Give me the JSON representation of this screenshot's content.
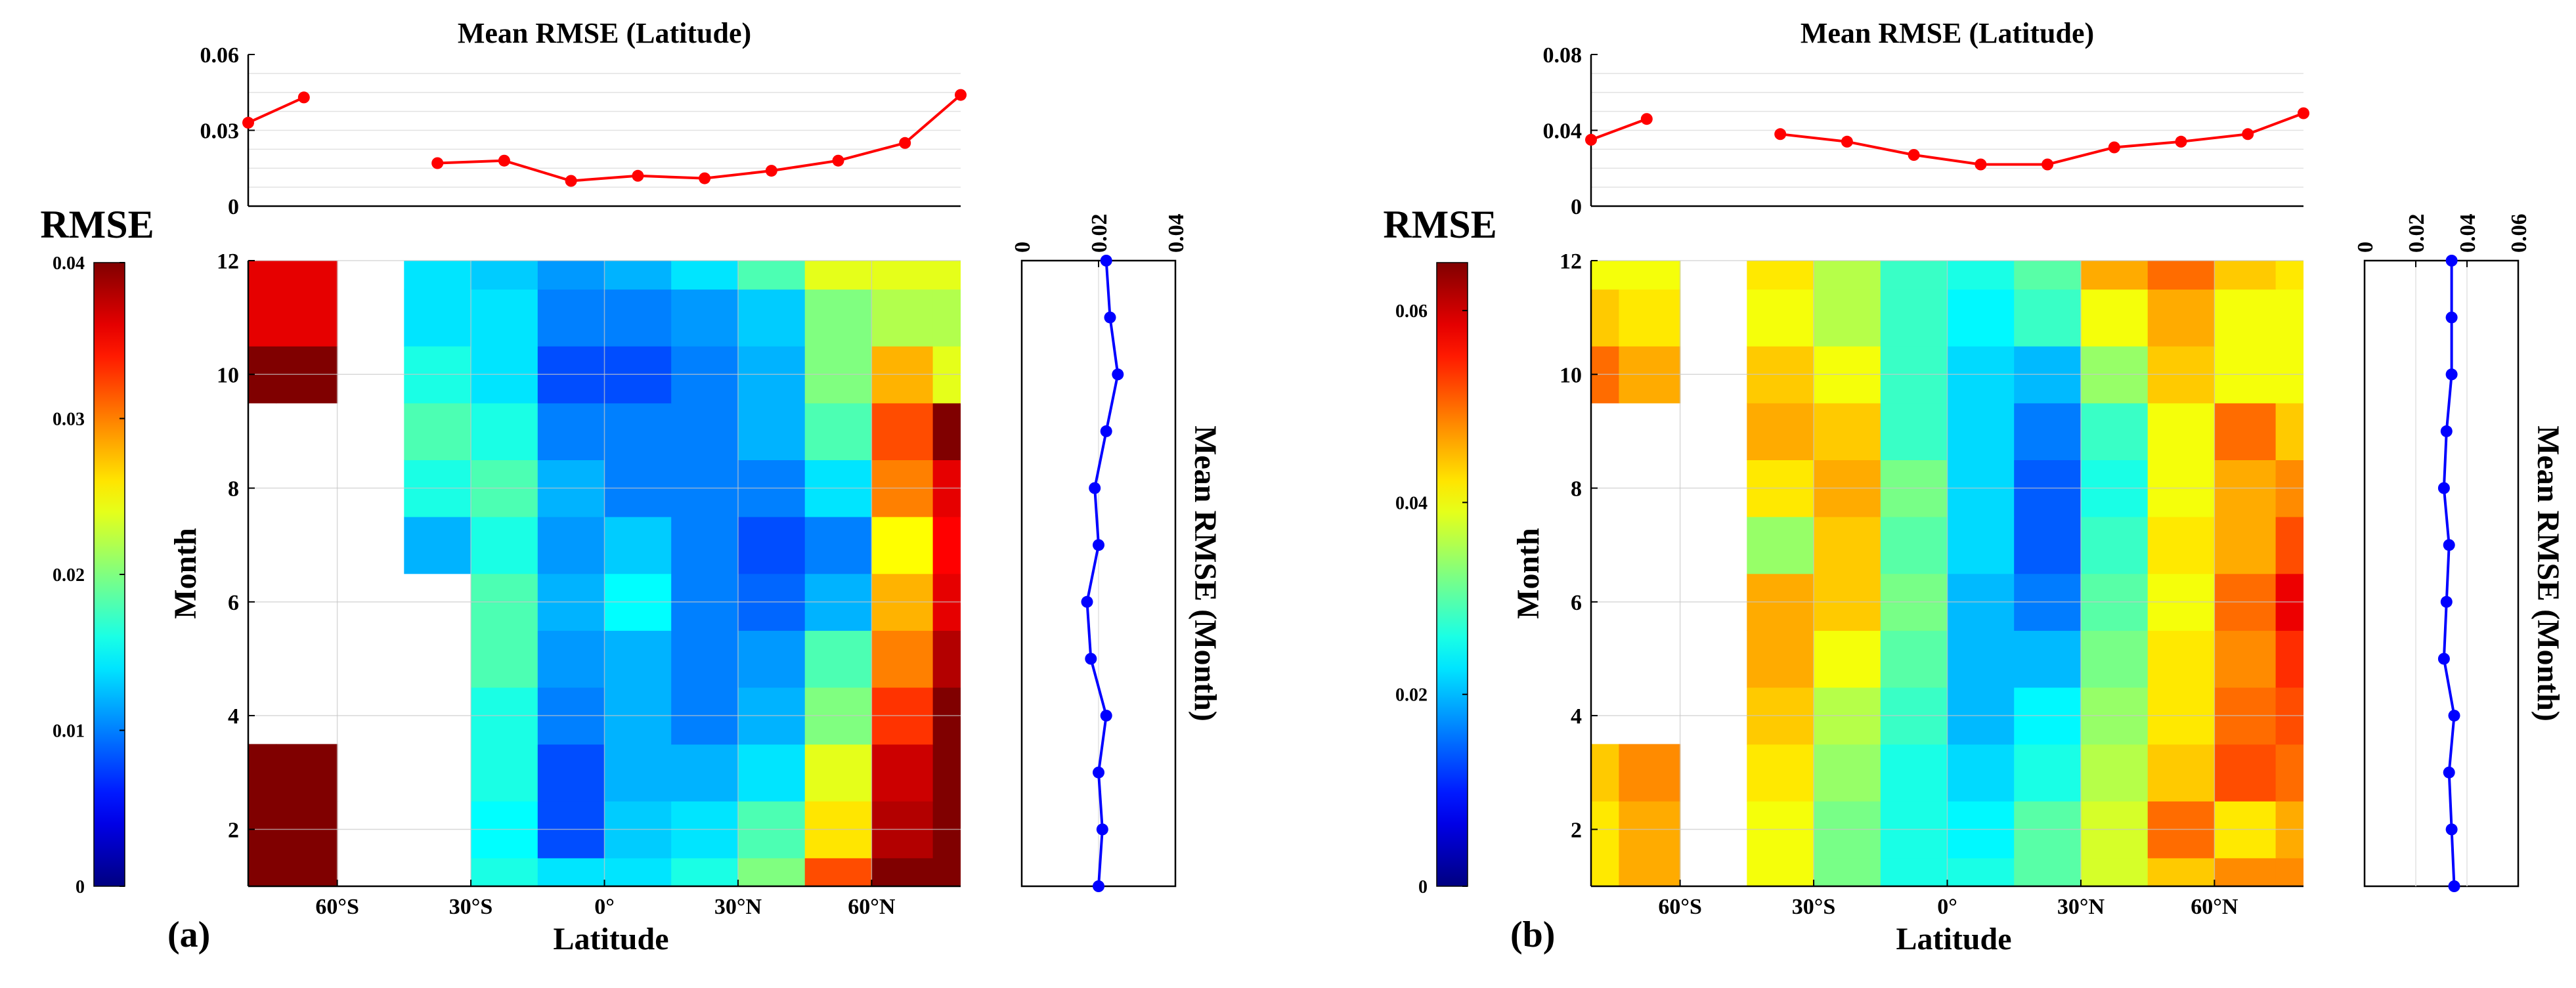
{
  "chart_data": [
    {
      "panel": "(a)",
      "type": "heatmap",
      "colorbar_title": "RMSE",
      "colorbar_range": [
        0,
        0.04
      ],
      "colorbar_ticks": [
        0,
        0.01,
        0.02,
        0.03,
        0.04
      ],
      "colorbar_tick_labels": [
        "0",
        "0.01",
        "0.02",
        "0.03",
        "0.04"
      ],
      "main": {
        "xlabel": "Latitude",
        "ylabel": "Month",
        "xlim": [
          -80,
          80
        ],
        "ylim": [
          1,
          12
        ],
        "xticks": [
          -60,
          -30,
          0,
          30,
          60
        ],
        "xtick_labels": [
          "60°S",
          "30°S",
          "0°",
          "30°N",
          "60°N"
        ],
        "yticks": [
          2,
          4,
          6,
          8,
          10,
          12
        ],
        "ytick_labels": [
          "2",
          "4",
          "6",
          "8",
          "10",
          "12"
        ],
        "lat_centers": [
          -80,
          -67.5,
          -52.5,
          -37.5,
          -22.5,
          -7.5,
          7.5,
          22.5,
          37.5,
          52.5,
          67.5,
          80
        ],
        "months": [
          1,
          2,
          3,
          4,
          5,
          6,
          7,
          8,
          9,
          10,
          11,
          12
        ],
        "values": [
          [
            0.04,
            0.04,
            null,
            null,
            0.016,
            0.014,
            0.014,
            0.016,
            0.02,
            0.032,
            0.04,
            0.04
          ],
          [
            0.04,
            0.04,
            null,
            null,
            0.015,
            0.008,
            0.013,
            0.014,
            0.018,
            0.026,
            0.038,
            0.04
          ],
          [
            0.04,
            0.04,
            null,
            null,
            0.016,
            0.008,
            0.012,
            0.012,
            0.014,
            0.024,
            0.037,
            0.04
          ],
          [
            null,
            null,
            null,
            null,
            0.016,
            0.01,
            0.012,
            0.01,
            0.012,
            0.02,
            0.033,
            0.04
          ],
          [
            null,
            null,
            null,
            null,
            0.018,
            0.011,
            0.012,
            0.01,
            0.011,
            0.018,
            0.03,
            0.038
          ],
          [
            null,
            null,
            null,
            null,
            0.018,
            0.012,
            0.015,
            0.01,
            0.009,
            0.012,
            0.028,
            0.036
          ],
          [
            null,
            null,
            null,
            0.012,
            0.016,
            0.011,
            0.013,
            0.01,
            0.008,
            0.01,
            0.025,
            0.035
          ],
          [
            null,
            null,
            null,
            0.016,
            0.018,
            0.012,
            0.01,
            0.01,
            0.01,
            0.014,
            0.03,
            0.036
          ],
          [
            null,
            null,
            null,
            0.018,
            0.016,
            0.01,
            0.01,
            0.01,
            0.012,
            0.018,
            0.032,
            0.04
          ],
          [
            0.04,
            0.04,
            null,
            0.016,
            0.014,
            0.008,
            0.008,
            0.01,
            0.012,
            0.02,
            0.028,
            0.024
          ],
          [
            0.036,
            0.036,
            null,
            0.014,
            0.014,
            0.01,
            0.01,
            0.011,
            0.013,
            0.02,
            0.022,
            0.022
          ],
          [
            0.036,
            0.036,
            null,
            0.014,
            0.013,
            0.011,
            0.012,
            0.014,
            0.018,
            0.024,
            0.024,
            0.024
          ]
        ]
      },
      "top": {
        "type": "line",
        "title": "Mean RMSE (Latitude)",
        "ylim": [
          0,
          0.06
        ],
        "yticks": [
          0,
          0.03,
          0.06
        ],
        "ytick_labels": [
          "0",
          "0.03",
          "0.06"
        ],
        "color": "#ff0000",
        "x": [
          -80,
          -67.5,
          -37.5,
          -22.5,
          -7.5,
          7.5,
          22.5,
          37.5,
          52.5,
          67.5,
          80
        ],
        "y": [
          0.033,
          0.043,
          0.017,
          0.018,
          0.01,
          0.012,
          0.011,
          0.014,
          0.018,
          0.025,
          0.044
        ]
      },
      "right": {
        "type": "line",
        "title": "Mean RMSE (Month)",
        "xlim": [
          0,
          0.04
        ],
        "xticks": [
          0,
          0.02,
          0.04
        ],
        "xtick_labels": [
          "0",
          "0.02",
          "0.04"
        ],
        "color": "#0000ff",
        "months": [
          1,
          2,
          3,
          4,
          5,
          6,
          7,
          8,
          9,
          10,
          11,
          12
        ],
        "values": [
          0.02,
          0.021,
          0.02,
          0.022,
          0.018,
          0.017,
          0.02,
          0.019,
          0.022,
          0.025,
          0.023,
          0.022
        ]
      }
    },
    {
      "panel": "(b)",
      "type": "heatmap",
      "colorbar_title": "RMSE",
      "colorbar_range": [
        0,
        0.065
      ],
      "colorbar_ticks": [
        0,
        0.02,
        0.04,
        0.06
      ],
      "colorbar_tick_labels": [
        "0",
        "0.02",
        "0.04",
        "0.06"
      ],
      "main": {
        "xlabel": "Latitude",
        "ylabel": "Month",
        "xlim": [
          -80,
          80
        ],
        "ylim": [
          1,
          12
        ],
        "xticks": [
          -60,
          -30,
          0,
          30,
          60
        ],
        "xtick_labels": [
          "60°S",
          "30°S",
          "0°",
          "30°N",
          "60°N"
        ],
        "yticks": [
          2,
          4,
          6,
          8,
          10,
          12
        ],
        "ytick_labels": [
          "2",
          "4",
          "6",
          "8",
          "10",
          "12"
        ],
        "lat_centers": [
          -80,
          -67.5,
          -52.5,
          -37.5,
          -22.5,
          -7.5,
          7.5,
          22.5,
          37.5,
          52.5,
          67.5,
          80
        ],
        "months": [
          1,
          2,
          3,
          4,
          5,
          6,
          7,
          8,
          9,
          10,
          11,
          12
        ],
        "values": [
          [
            0.042,
            0.046,
            null,
            0.04,
            0.032,
            0.026,
            0.026,
            0.03,
            0.038,
            0.044,
            0.048,
            0.048
          ],
          [
            0.042,
            0.046,
            null,
            0.04,
            0.032,
            0.026,
            0.024,
            0.03,
            0.038,
            0.05,
            0.042,
            0.046
          ],
          [
            0.044,
            0.048,
            null,
            0.042,
            0.034,
            0.026,
            0.022,
            0.026,
            0.036,
            0.044,
            0.052,
            0.05
          ],
          [
            null,
            null,
            null,
            0.044,
            0.036,
            0.028,
            0.02,
            0.024,
            0.034,
            0.042,
            0.05,
            0.052
          ],
          [
            null,
            null,
            null,
            0.046,
            0.04,
            0.03,
            0.02,
            0.02,
            0.032,
            0.042,
            0.048,
            0.054
          ],
          [
            null,
            null,
            null,
            0.046,
            0.044,
            0.032,
            0.02,
            0.016,
            0.03,
            0.04,
            0.05,
            0.058
          ],
          [
            null,
            null,
            null,
            0.034,
            0.044,
            0.03,
            0.022,
            0.014,
            0.028,
            0.042,
            0.046,
            0.052
          ],
          [
            null,
            null,
            null,
            0.042,
            0.046,
            0.032,
            0.022,
            0.014,
            0.026,
            0.04,
            0.046,
            0.048
          ],
          [
            null,
            null,
            null,
            0.046,
            0.044,
            0.028,
            0.022,
            0.016,
            0.028,
            0.04,
            0.05,
            0.044
          ],
          [
            0.05,
            0.046,
            null,
            0.044,
            0.04,
            0.028,
            0.022,
            0.02,
            0.034,
            0.044,
            0.04,
            0.04
          ],
          [
            0.044,
            0.042,
            null,
            0.04,
            0.036,
            0.028,
            0.024,
            0.028,
            0.04,
            0.046,
            0.04,
            0.04
          ],
          [
            0.04,
            0.04,
            null,
            0.042,
            0.036,
            0.028,
            0.026,
            0.03,
            0.046,
            0.05,
            0.044,
            0.042
          ]
        ]
      },
      "top": {
        "type": "line",
        "title": "Mean RMSE (Latitude)",
        "ylim": [
          0,
          0.08
        ],
        "yticks": [
          0,
          0.04,
          0.08
        ],
        "ytick_labels": [
          "0",
          "0.04",
          "0.08"
        ],
        "color": "#ff0000",
        "x": [
          -80,
          -67.5,
          -37.5,
          -22.5,
          -7.5,
          7.5,
          22.5,
          37.5,
          52.5,
          67.5,
          80
        ],
        "y": [
          0.035,
          0.046,
          0.038,
          0.034,
          0.027,
          0.022,
          0.022,
          0.031,
          0.034,
          0.038,
          0.049
        ]
      },
      "right": {
        "type": "line",
        "title": "Mean RMSE (Month)",
        "xlim": [
          0,
          0.06
        ],
        "xticks": [
          0,
          0.02,
          0.04,
          0.06
        ],
        "xtick_labels": [
          "0",
          "0.02",
          "0.04",
          "0.06"
        ],
        "color": "#0000ff",
        "months": [
          1,
          2,
          3,
          4,
          5,
          6,
          7,
          8,
          9,
          10,
          11,
          12
        ],
        "values": [
          0.035,
          0.034,
          0.033,
          0.035,
          0.031,
          0.032,
          0.033,
          0.031,
          0.032,
          0.034,
          0.034,
          0.034
        ]
      }
    }
  ]
}
